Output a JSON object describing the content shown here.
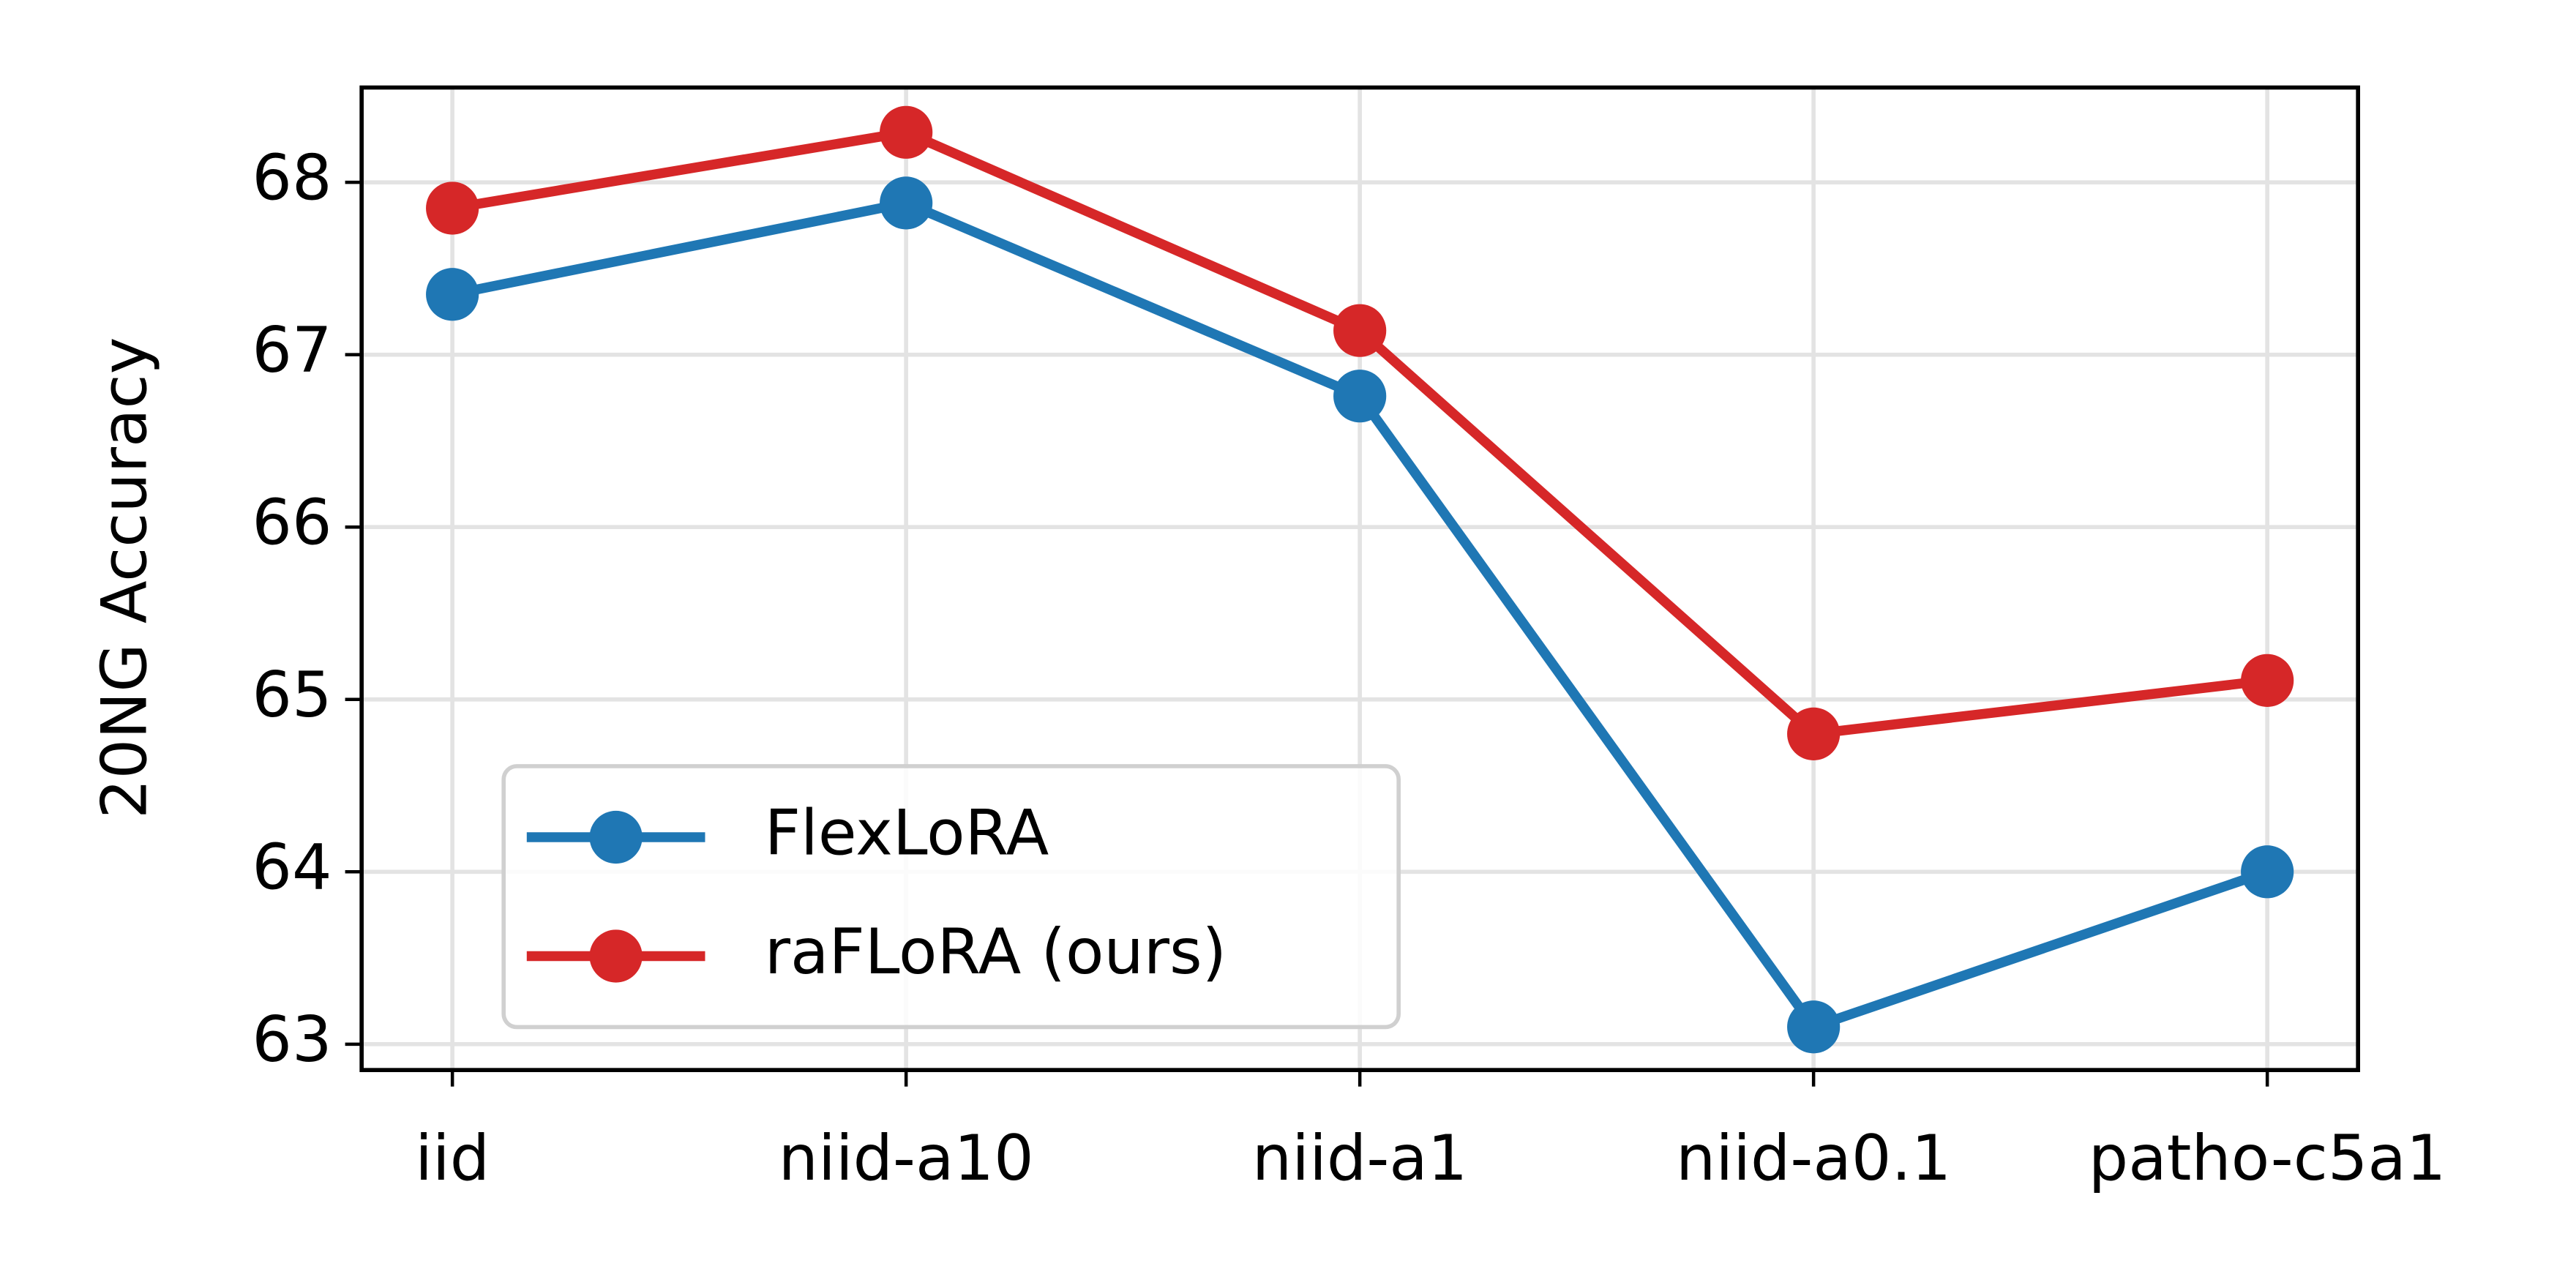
{
  "chart_data": {
    "type": "line",
    "y_label": "20NG Accuracy",
    "categories": [
      "iid",
      "niid-a10",
      "niid-a1",
      "niid-a0.1",
      "patho-c5a1"
    ],
    "series": [
      {
        "name": "FlexLoRA",
        "color": "#1f77b4",
        "values": [
          67.35,
          67.88,
          66.76,
          63.1,
          64.0
        ]
      },
      {
        "name": "raFLoRA (ours)",
        "color": "#d62728",
        "values": [
          67.85,
          68.29,
          67.14,
          64.8,
          65.11
        ]
      }
    ],
    "ylim": [
      62.85,
      68.55
    ],
    "yticks": [
      63,
      64,
      65,
      66,
      67,
      68
    ],
    "grid": true,
    "legend": "lower left"
  }
}
